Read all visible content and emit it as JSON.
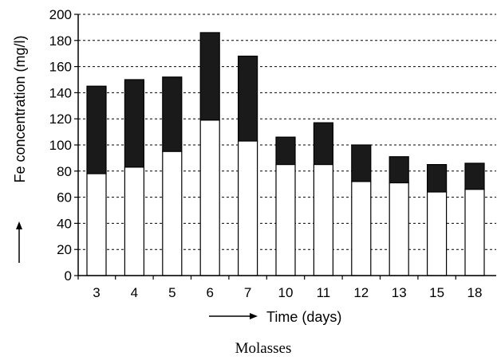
{
  "chart_data": {
    "type": "bar",
    "stacked": true,
    "categories": [
      "3",
      "4",
      "5",
      "6",
      "7",
      "10",
      "11",
      "12",
      "13",
      "15",
      "18"
    ],
    "series": [
      {
        "values": [
          78,
          83,
          95,
          119,
          103,
          85,
          85,
          72,
          71,
          64,
          66
        ],
        "color": "#ffffff"
      },
      {
        "values": [
          67,
          67,
          57,
          67,
          65,
          21,
          32,
          28,
          20,
          21,
          20
        ],
        "color": "#1a1a1a"
      }
    ],
    "y_ticks": [
      "0",
      "20",
      "40",
      "60",
      "80",
      "100",
      "120",
      "140",
      "160",
      "180",
      "200"
    ],
    "ylim": [
      0,
      200
    ],
    "xlabel": "Time (days)",
    "ylabel": "Fe concentration (mg/l)",
    "caption": "Molasses",
    "grid": "horizontal dashed",
    "legend": "none"
  }
}
